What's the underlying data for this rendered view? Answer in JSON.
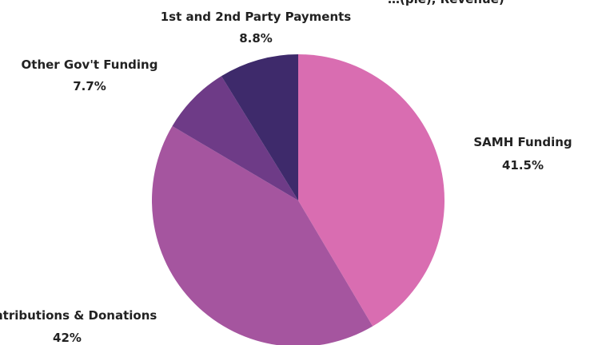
{
  "chart_data": {
    "type": "pie",
    "title_fragment": "…(pie), Revenue)",
    "slices": [
      {
        "name": "SAMH Funding",
        "value_label": "41.5%",
        "value": 41.5,
        "color": "#d96db1"
      },
      {
        "name": "Contributions & Donations",
        "value_label": "42%",
        "value": 42.0,
        "color": "#a5559f"
      },
      {
        "name": "Other Gov't Funding",
        "value_label": "7.7%",
        "value": 7.7,
        "color": "#6e3b87"
      },
      {
        "name": "1st and 2nd Party Payments",
        "value_label": "8.8%",
        "value": 8.8,
        "color": "#3e2a6b"
      }
    ]
  }
}
